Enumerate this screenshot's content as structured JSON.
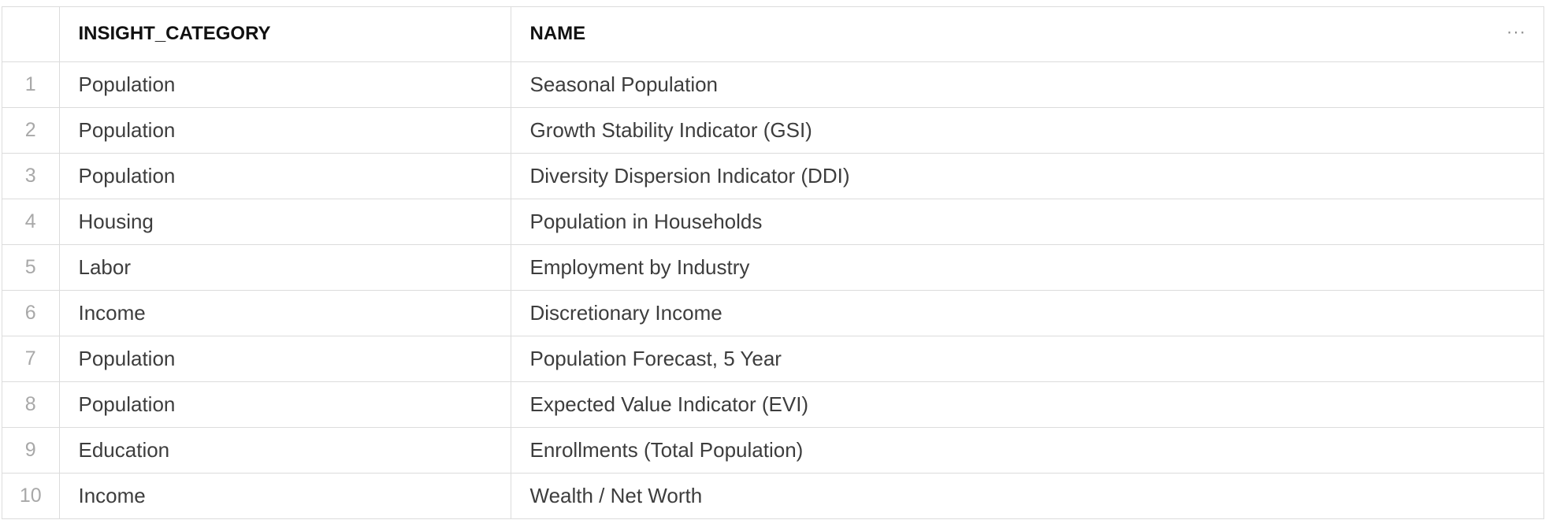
{
  "table": {
    "columns": [
      {
        "key": "index",
        "label": ""
      },
      {
        "key": "insight_category",
        "label": "INSIGHT_CATEGORY"
      },
      {
        "key": "name",
        "label": "NAME"
      }
    ],
    "more_icon": "more-horizontal-icon",
    "rows": [
      {
        "index": "1",
        "insight_category": "Population",
        "name": "Seasonal Population"
      },
      {
        "index": "2",
        "insight_category": "Population",
        "name": "Growth Stability Indicator (GSI)"
      },
      {
        "index": "3",
        "insight_category": "Population",
        "name": "Diversity Dispersion Indicator (DDI)"
      },
      {
        "index": "4",
        "insight_category": "Housing",
        "name": "Population in Households"
      },
      {
        "index": "5",
        "insight_category": "Labor",
        "name": "Employment by Industry"
      },
      {
        "index": "6",
        "insight_category": "Income",
        "name": "Discretionary Income"
      },
      {
        "index": "7",
        "insight_category": "Population",
        "name": "Population Forecast, 5 Year"
      },
      {
        "index": "8",
        "insight_category": "Population",
        "name": "Expected Value Indicator (EVI)"
      },
      {
        "index": "9",
        "insight_category": "Education",
        "name": "Enrollments (Total Population)"
      },
      {
        "index": "10",
        "insight_category": "Income",
        "name": "Wealth / Net Worth"
      }
    ]
  }
}
